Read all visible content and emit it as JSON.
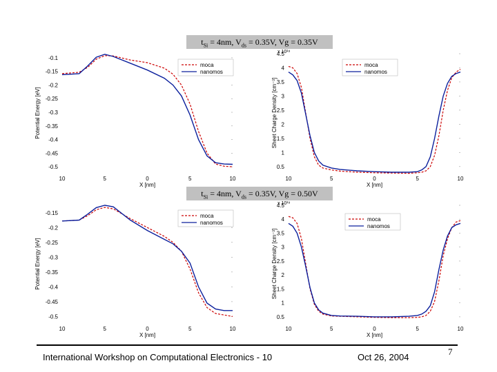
{
  "slide": {
    "banner_top": {
      "pre": "t",
      "sub1": "Si",
      "mid1": " = 4nm, V",
      "sub2": "ds",
      "tail": " = 0.35V, Vg = 0.35V"
    },
    "banner_bottom": {
      "pre": "t",
      "sub1": "Si",
      "mid1": " = 4nm, V",
      "sub2": "ds",
      "tail": " = 0.35V, Vg = 0.50V"
    },
    "footer_text": "International Workshop on Computational Electronics - 10",
    "footer_date": "Oct 26, 2004",
    "page_number": "7"
  },
  "colors": {
    "moca": "#cc0000",
    "nanomos": "#0a1e9c"
  },
  "chart_data": [
    {
      "type": "line",
      "id": "pe-top",
      "ylabel": "Potential Energy [eV]",
      "xlabel": "X [nm]",
      "xlim": [
        -10,
        10
      ],
      "ylim": [
        -0.52,
        -0.085
      ],
      "xticks": [
        -10,
        -5,
        0,
        5,
        10
      ],
      "xticklabels": [
        "10",
        "5",
        "0",
        "5",
        "10"
      ],
      "yticks": [
        -0.1,
        -0.15,
        -0.2,
        -0.25,
        -0.3,
        -0.35,
        -0.4,
        -0.45,
        -0.5
      ],
      "yticklabels": [
        "-0.1",
        "-0.15",
        "-0.2",
        "-0.25",
        "-0.3",
        "-0.35",
        "-0.4",
        "-0.45",
        "-0.5"
      ],
      "legend": [
        "moca",
        "nanomos"
      ],
      "legend_position": "top-right",
      "series": [
        {
          "name": "moca",
          "style": "dashed",
          "x": [
            -10,
            -8,
            -7,
            -6,
            -5,
            -4,
            -2,
            0,
            2,
            3,
            4,
            5,
            6,
            7,
            8,
            9,
            10
          ],
          "y": [
            -0.158,
            -0.153,
            -0.135,
            -0.105,
            -0.092,
            -0.093,
            -0.108,
            -0.118,
            -0.138,
            -0.16,
            -0.2,
            -0.27,
            -0.37,
            -0.45,
            -0.49,
            -0.498,
            -0.5
          ]
        },
        {
          "name": "nanomos",
          "style": "solid",
          "x": [
            -10,
            -8,
            -7,
            -6,
            -5,
            -4,
            -2,
            0,
            2,
            3,
            4,
            5,
            6,
            7,
            8,
            9,
            10
          ],
          "y": [
            -0.162,
            -0.158,
            -0.13,
            -0.098,
            -0.087,
            -0.095,
            -0.12,
            -0.145,
            -0.175,
            -0.2,
            -0.24,
            -0.31,
            -0.4,
            -0.46,
            -0.485,
            -0.49,
            -0.491
          ]
        }
      ]
    },
    {
      "type": "line",
      "id": "scd-top",
      "ylabel": "Sheet Charge Density [cm⁻³]",
      "xlabel": "X [nm]",
      "yexponent": "x 10¹⁹",
      "xlim": [
        -10,
        10
      ],
      "ylim": [
        0.3,
        4.5
      ],
      "xticks": [
        -10,
        -5,
        0,
        5,
        10
      ],
      "xticklabels": [
        "10",
        "5",
        "0",
        "5",
        "10"
      ],
      "yticks": [
        0.5,
        1,
        1.5,
        2,
        2.5,
        3,
        3.5,
        4,
        4.5
      ],
      "yticklabels": [
        "0.5",
        "1",
        "1.5",
        "2",
        "2.5",
        "3",
        "3.5",
        "4",
        "4.5"
      ],
      "legend": [
        "moca",
        "nanomos"
      ],
      "legend_position": "top-right",
      "series": [
        {
          "name": "moca",
          "style": "dashed",
          "x": [
            -10,
            -9.5,
            -9,
            -8.5,
            -8,
            -7.5,
            -7,
            -6.5,
            -6,
            -5,
            -4,
            -2,
            0,
            2,
            4,
            5,
            5.5,
            6,
            6.5,
            7,
            7.5,
            8,
            8.5,
            9,
            9.5,
            10
          ],
          "y": [
            4.05,
            4.0,
            3.8,
            3.3,
            2.4,
            1.5,
            0.85,
            0.55,
            0.45,
            0.38,
            0.34,
            0.3,
            0.28,
            0.27,
            0.26,
            0.28,
            0.3,
            0.35,
            0.5,
            0.9,
            1.6,
            2.5,
            3.2,
            3.65,
            3.85,
            3.95
          ]
        },
        {
          "name": "nanomos",
          "style": "solid",
          "x": [
            -10,
            -9.5,
            -9,
            -8.5,
            -8,
            -7.5,
            -7,
            -6.5,
            -6,
            -5,
            -4,
            -2,
            0,
            2,
            4,
            5,
            5.5,
            6,
            6.5,
            7,
            7.5,
            8,
            8.5,
            9,
            9.5,
            10
          ],
          "y": [
            3.85,
            3.75,
            3.55,
            3.1,
            2.35,
            1.6,
            1.0,
            0.7,
            0.55,
            0.45,
            0.4,
            0.35,
            0.32,
            0.3,
            0.3,
            0.32,
            0.38,
            0.5,
            0.85,
            1.5,
            2.3,
            3.0,
            3.45,
            3.7,
            3.8,
            3.85
          ]
        }
      ]
    },
    {
      "type": "line",
      "id": "pe-bottom",
      "ylabel": "Potential Energy [eV]",
      "xlabel": "X [nm]",
      "xlim": [
        -10,
        10
      ],
      "ylim": [
        -0.52,
        -0.125
      ],
      "xticks": [
        -10,
        -5,
        0,
        5,
        10
      ],
      "xticklabels": [
        "10",
        "5",
        "0",
        "5",
        "10"
      ],
      "yticks": [
        -0.15,
        -0.2,
        -0.25,
        -0.3,
        -0.35,
        -0.4,
        -0.45,
        -0.5
      ],
      "yticklabels": [
        "-0.15",
        "-0.2",
        "-0.25",
        "-0.3",
        "-0.35",
        "-0.4",
        "-0.45",
        "-0.5"
      ],
      "legend": [
        "moca",
        "nanomos"
      ],
      "legend_position": "top-right",
      "series": [
        {
          "name": "moca",
          "style": "dashed",
          "x": [
            -10,
            -8,
            -7,
            -6,
            -5,
            -4,
            -2,
            0,
            2,
            3,
            4,
            5,
            6,
            7,
            8,
            9,
            10
          ],
          "y": [
            -0.178,
            -0.175,
            -0.16,
            -0.14,
            -0.132,
            -0.137,
            -0.17,
            -0.2,
            -0.23,
            -0.25,
            -0.28,
            -0.34,
            -0.42,
            -0.47,
            -0.49,
            -0.495,
            -0.5
          ]
        },
        {
          "name": "nanomos",
          "style": "solid",
          "x": [
            -10,
            -8,
            -7,
            -6,
            -5,
            -4,
            -2,
            0,
            2,
            3,
            4,
            5,
            6,
            7,
            8,
            9,
            10
          ],
          "y": [
            -0.178,
            -0.175,
            -0.155,
            -0.133,
            -0.125,
            -0.13,
            -0.175,
            -0.21,
            -0.24,
            -0.255,
            -0.28,
            -0.32,
            -0.4,
            -0.455,
            -0.475,
            -0.48,
            -0.48
          ]
        }
      ]
    },
    {
      "type": "line",
      "id": "scd-bottom",
      "ylabel": "Sheet Charge Density [cm⁻³]",
      "xlabel": "X [nm]",
      "yexponent": "x 10¹⁹",
      "xlim": [
        -10,
        10
      ],
      "ylim": [
        0.3,
        4.5
      ],
      "xticks": [
        -10,
        -5,
        0,
        5,
        10
      ],
      "xticklabels": [
        "10",
        "5",
        "0",
        "5",
        "10"
      ],
      "yticks": [
        0.5,
        1,
        1.5,
        2,
        2.5,
        3,
        3.5,
        4,
        4.5
      ],
      "yticklabels": [
        "0.5",
        "1",
        "1.5",
        "2",
        "2.5",
        "3",
        "3.5",
        "4",
        "4.5"
      ],
      "legend": [
        "moca",
        "nanomos"
      ],
      "legend_position": "top-right",
      "series": [
        {
          "name": "moca",
          "style": "dashed",
          "x": [
            -10,
            -9.5,
            -9,
            -8.5,
            -8,
            -7.5,
            -7,
            -6.5,
            -6,
            -5,
            -4,
            -2,
            0,
            2,
            4,
            5,
            5.5,
            6,
            6.5,
            7,
            7.5,
            8,
            8.5,
            9,
            9.5,
            10
          ],
          "y": [
            4.1,
            4.05,
            3.85,
            3.3,
            2.4,
            1.5,
            0.95,
            0.7,
            0.6,
            0.53,
            0.52,
            0.5,
            0.48,
            0.47,
            0.47,
            0.48,
            0.5,
            0.55,
            0.7,
            1.05,
            1.8,
            2.7,
            3.3,
            3.7,
            3.9,
            3.95
          ]
        },
        {
          "name": "nanomos",
          "style": "solid",
          "x": [
            -10,
            -9.5,
            -9,
            -8.5,
            -8,
            -7.5,
            -7,
            -6.5,
            -6,
            -5,
            -4,
            -2,
            0,
            2,
            4,
            5,
            5.5,
            6,
            6.5,
            7,
            7.5,
            8,
            8.5,
            9,
            9.5,
            10
          ],
          "y": [
            3.85,
            3.75,
            3.5,
            3.0,
            2.3,
            1.55,
            1.0,
            0.75,
            0.63,
            0.55,
            0.53,
            0.52,
            0.5,
            0.5,
            0.52,
            0.55,
            0.6,
            0.7,
            0.9,
            1.4,
            2.2,
            2.9,
            3.4,
            3.7,
            3.8,
            3.85
          ]
        }
      ]
    }
  ]
}
